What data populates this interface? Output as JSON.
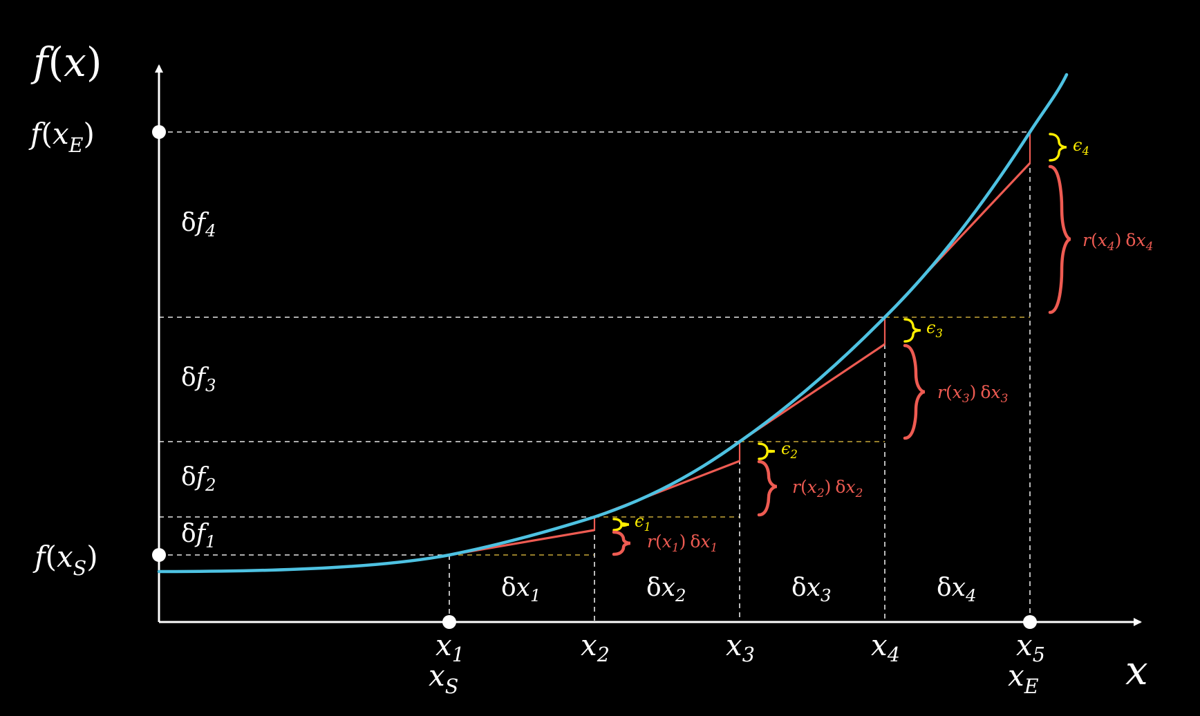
{
  "colors": {
    "background": "#000000",
    "axis": "#ffffff",
    "curve": "#4ec2e2",
    "tangent": "#ee5b52",
    "epsilon": "#ffee00",
    "grid_white": "#e8e8e8",
    "grid_yellow": "#c8a838"
  },
  "axes": {
    "y_label": {
      "f": "f",
      "lp": "(",
      "x": "x",
      "rp": ")"
    },
    "x_label": "x",
    "y_start": {
      "f": "f",
      "lp": "(",
      "x": "x",
      "sub": "S",
      "rp": ")"
    },
    "y_end": {
      "f": "f",
      "lp": "(",
      "x": "x",
      "sub": "E",
      "rp": ")"
    }
  },
  "x_ticks": [
    {
      "base": "x",
      "sub": "1",
      "alt": "x",
      "alt_sub": "S"
    },
    {
      "base": "x",
      "sub": "2"
    },
    {
      "base": "x",
      "sub": "3"
    },
    {
      "base": "x",
      "sub": "4"
    },
    {
      "base": "x",
      "sub": "5",
      "alt": "x",
      "alt_sub": "E"
    }
  ],
  "delta_x": [
    {
      "d": "δ",
      "v": "x",
      "sub": "1"
    },
    {
      "d": "δ",
      "v": "x",
      "sub": "2"
    },
    {
      "d": "δ",
      "v": "x",
      "sub": "3"
    },
    {
      "d": "δ",
      "v": "x",
      "sub": "4"
    }
  ],
  "delta_f": [
    {
      "d": "δ",
      "v": "f",
      "sub": "1"
    },
    {
      "d": "δ",
      "v": "f",
      "sub": "2"
    },
    {
      "d": "δ",
      "v": "f",
      "sub": "3"
    },
    {
      "d": "δ",
      "v": "f",
      "sub": "4"
    }
  ],
  "epsilons": [
    {
      "sym": "ϵ",
      "sub": "1"
    },
    {
      "sym": "ϵ",
      "sub": "2"
    },
    {
      "sym": "ϵ",
      "sub": "3"
    },
    {
      "sym": "ϵ",
      "sub": "4"
    }
  ],
  "tangent_terms": [
    {
      "r": "r",
      "lp": "(",
      "x": "x",
      "sub": "1",
      "rp": ")",
      "d": "δ",
      "dx": "x",
      "dsub": "1"
    },
    {
      "r": "r",
      "lp": "(",
      "x": "x",
      "sub": "2",
      "rp": ")",
      "d": "δ",
      "dx": "x",
      "dsub": "2"
    },
    {
      "r": "r",
      "lp": "(",
      "x": "x",
      "sub": "3",
      "rp": ")",
      "d": "δ",
      "dx": "x",
      "dsub": "3"
    },
    {
      "r": "r",
      "lp": "(",
      "x": "x",
      "sub": "4",
      "rp": ")",
      "d": "δ",
      "dx": "x",
      "dsub": "4"
    }
  ]
}
